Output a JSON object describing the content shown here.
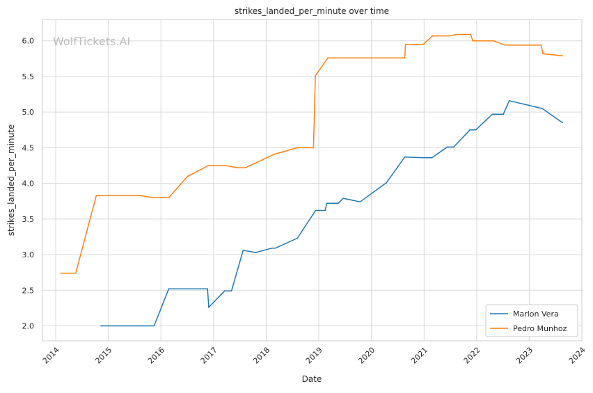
{
  "watermark": "WolfTickets.AI",
  "chart_data": {
    "type": "line",
    "title": "strikes_landed_per_minute over time",
    "xlabel": "Date",
    "ylabel": "strikes_landed_per_minute",
    "xlim": [
      "2013-10-01",
      "2024-01-01"
    ],
    "ylim": [
      1.79,
      6.3
    ],
    "x_ticks": [
      "2014",
      "2015",
      "2016",
      "2017",
      "2018",
      "2019",
      "2020",
      "2021",
      "2022",
      "2023",
      "2024"
    ],
    "y_ticks": [
      "2.0",
      "2.5",
      "3.0",
      "3.5",
      "4.0",
      "4.5",
      "5.0",
      "5.5",
      "6.0"
    ],
    "grid": true,
    "legend_position": "bottom-right",
    "series": [
      {
        "name": "Marlon Vera",
        "color": "#1f77b4",
        "points": [
          [
            "2014-11-10",
            2.0
          ],
          [
            "2015-11-15",
            2.0
          ],
          [
            "2016-02-25",
            2.52
          ],
          [
            "2016-11-20",
            2.52
          ],
          [
            "2016-11-28",
            2.26
          ],
          [
            "2017-03-18",
            2.49
          ],
          [
            "2017-05-05",
            2.49
          ],
          [
            "2017-07-25",
            3.06
          ],
          [
            "2017-10-20",
            3.03
          ],
          [
            "2018-02-10",
            3.09
          ],
          [
            "2018-03-05",
            3.09
          ],
          [
            "2018-08-05",
            3.23
          ],
          [
            "2018-12-10",
            3.62
          ],
          [
            "2019-02-15",
            3.62
          ],
          [
            "2019-02-25",
            3.72
          ],
          [
            "2019-05-15",
            3.72
          ],
          [
            "2019-06-20",
            3.79
          ],
          [
            "2019-10-15",
            3.74
          ],
          [
            "2020-04-15",
            4.01
          ],
          [
            "2020-08-20",
            4.37
          ],
          [
            "2021-01-01",
            4.36
          ],
          [
            "2021-02-25",
            4.36
          ],
          [
            "2021-06-10",
            4.51
          ],
          [
            "2021-07-25",
            4.51
          ],
          [
            "2021-11-15",
            4.75
          ],
          [
            "2021-12-25",
            4.75
          ],
          [
            "2022-04-20",
            4.97
          ],
          [
            "2022-07-05",
            4.97
          ],
          [
            "2022-08-15",
            5.16
          ],
          [
            "2023-04-01",
            5.05
          ],
          [
            "2023-08-20",
            4.85
          ]
        ]
      },
      {
        "name": "Pedro Munhoz",
        "color": "#ff7f0e",
        "points": [
          [
            "2014-02-05",
            2.74
          ],
          [
            "2014-05-20",
            2.74
          ],
          [
            "2014-10-10",
            3.83
          ],
          [
            "2015-08-01",
            3.83
          ],
          [
            "2015-11-10",
            3.8
          ],
          [
            "2016-02-25",
            3.8
          ],
          [
            "2016-07-05",
            4.1
          ],
          [
            "2016-11-25",
            4.25
          ],
          [
            "2017-03-25",
            4.25
          ],
          [
            "2017-06-15",
            4.22
          ],
          [
            "2017-08-10",
            4.22
          ],
          [
            "2017-12-05",
            4.33
          ],
          [
            "2018-03-01",
            4.41
          ],
          [
            "2018-08-05",
            4.5
          ],
          [
            "2018-11-25",
            4.5
          ],
          [
            "2018-12-08",
            5.51
          ],
          [
            "2019-03-05",
            5.76
          ],
          [
            "2020-08-20",
            5.76
          ],
          [
            "2020-08-25",
            5.95
          ],
          [
            "2020-12-25",
            5.95
          ],
          [
            "2021-03-01",
            6.07
          ],
          [
            "2021-06-30",
            6.07
          ],
          [
            "2021-08-15",
            6.09
          ],
          [
            "2021-11-20",
            6.09
          ],
          [
            "2021-12-05",
            6.0
          ],
          [
            "2022-04-25",
            6.0
          ],
          [
            "2022-07-20",
            5.94
          ],
          [
            "2023-03-25",
            5.94
          ],
          [
            "2023-04-05",
            5.82
          ],
          [
            "2023-08-20",
            5.79
          ]
        ]
      }
    ]
  }
}
